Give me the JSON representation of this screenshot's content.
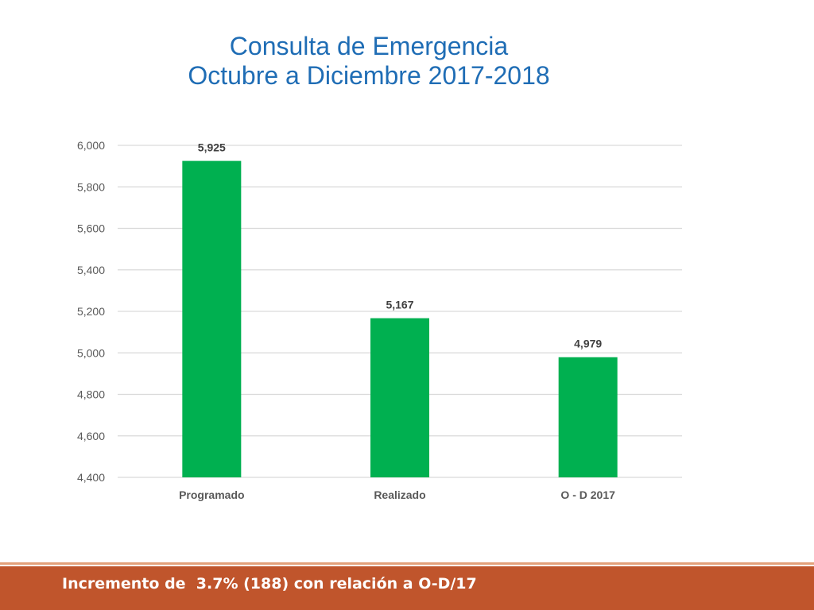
{
  "slide": {
    "title_line1": "Consulta de Emergencia",
    "title_line2": "Octubre a Diciembre 2017-2018",
    "footer": "Incremento de  3.7% (188) con relación a O-D/17"
  },
  "colors": {
    "title": "#1f6db5",
    "bar": "#00b050",
    "gridline": "#d9d9d9",
    "footer_band": "#c0552c",
    "footer_text": "#ffffff"
  },
  "chart_data": {
    "type": "bar",
    "categories": [
      "Programado",
      "Realizado",
      "O - D 2017"
    ],
    "values": [
      5925,
      5167,
      4979
    ],
    "data_labels": [
      "5,925",
      "5,167",
      "4,979"
    ],
    "ylim": [
      4400,
      6000
    ],
    "yticks": [
      4400,
      4600,
      4800,
      5000,
      5200,
      5400,
      5600,
      5800,
      6000
    ],
    "ytick_labels": [
      "4,400",
      "4,600",
      "4,800",
      "5,000",
      "5,200",
      "5,400",
      "5,600",
      "5,800",
      "6,000"
    ],
    "grid": true,
    "legend": "none"
  }
}
